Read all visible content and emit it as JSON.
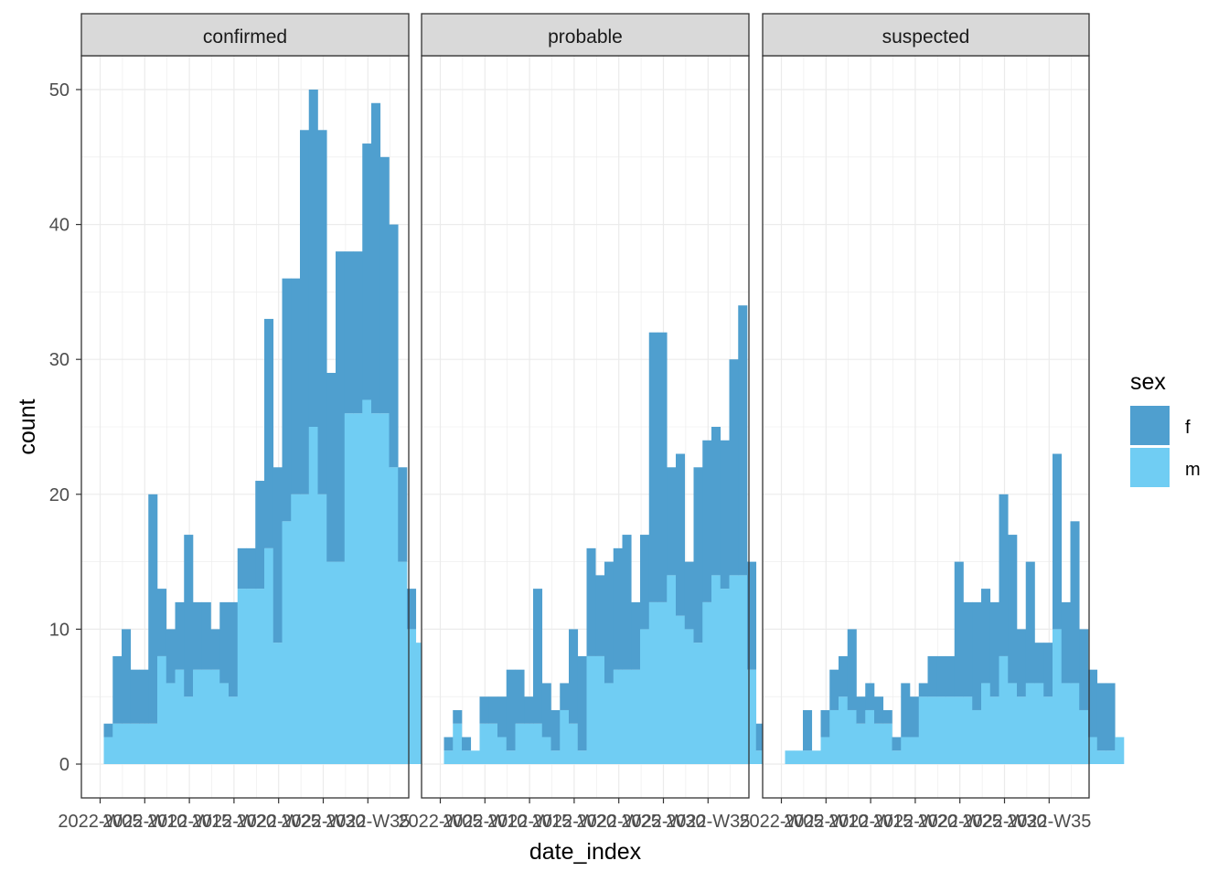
{
  "chart_data": {
    "type": "bar",
    "stacked": true,
    "xlabel": "date_index",
    "ylabel": "count",
    "ylim": [
      0,
      53
    ],
    "yticks": [
      0,
      10,
      20,
      30,
      40,
      50
    ],
    "x_tick_labels": [
      "2022-W05",
      "2022-W10",
      "2022-W15",
      "2022-W20",
      "2022-W25",
      "2022-W30",
      "2022-W35"
    ],
    "legend": {
      "title": "sex",
      "position": "right",
      "entries": [
        {
          "name": "f",
          "color": "#4f9fcf"
        },
        {
          "name": "m",
          "color": "#70cdf3"
        }
      ]
    },
    "grid": true,
    "facets": [
      {
        "title": "confirmed",
        "m": [
          2,
          3,
          3,
          3,
          3,
          3,
          8,
          6,
          7,
          5,
          7,
          7,
          7,
          6,
          5,
          13,
          13,
          13,
          16,
          9,
          18,
          20,
          20,
          25,
          20,
          15,
          15,
          26,
          26,
          27,
          26,
          26,
          22,
          15,
          10,
          9,
          7,
          4,
          2
        ],
        "f": [
          1,
          5,
          7,
          4,
          4,
          17,
          5,
          4,
          5,
          12,
          5,
          5,
          3,
          6,
          7,
          3,
          3,
          8,
          17,
          13,
          18,
          16,
          27,
          25,
          27,
          14,
          23,
          12,
          12,
          19,
          23,
          19,
          18,
          7,
          3,
          0,
          2,
          4,
          1
        ]
      },
      {
        "title": "probable",
        "m": [
          1,
          3,
          1,
          1,
          3,
          3,
          2,
          1,
          3,
          3,
          3,
          2,
          1,
          4,
          3,
          1,
          8,
          8,
          6,
          7,
          7,
          7,
          10,
          12,
          12,
          14,
          11,
          10,
          9,
          12,
          14,
          13,
          14,
          14,
          7,
          1,
          3,
          4,
          0
        ],
        "f": [
          1,
          1,
          1,
          0,
          2,
          2,
          3,
          6,
          4,
          2,
          10,
          4,
          3,
          2,
          7,
          7,
          8,
          6,
          9,
          9,
          10,
          5,
          7,
          20,
          20,
          8,
          12,
          5,
          13,
          12,
          11,
          11,
          16,
          20,
          8,
          2,
          2,
          5,
          2
        ]
      },
      {
        "title": "suspected",
        "m": [
          1,
          1,
          1,
          1,
          2,
          4,
          5,
          4,
          3,
          4,
          3,
          3,
          1,
          2,
          2,
          5,
          5,
          5,
          5,
          5,
          5,
          4,
          6,
          5,
          8,
          6,
          5,
          6,
          6,
          5,
          10,
          6,
          6,
          4,
          2,
          1,
          1,
          2
        ],
        "f": [
          0,
          0,
          3,
          0,
          2,
          3,
          3,
          6,
          2,
          2,
          2,
          1,
          1,
          4,
          3,
          1,
          3,
          3,
          3,
          10,
          7,
          8,
          7,
          7,
          12,
          11,
          5,
          9,
          3,
          4,
          13,
          6,
          12,
          6,
          5,
          5,
          5,
          0
        ]
      }
    ]
  }
}
